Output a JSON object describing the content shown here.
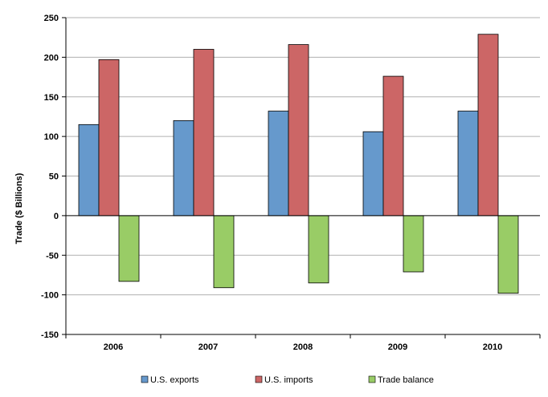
{
  "chart_data": {
    "type": "bar",
    "title": "",
    "xlabel": "",
    "ylabel": "Trade ($ Billions)",
    "categories": [
      "2006",
      "2007",
      "2008",
      "2009",
      "2010"
    ],
    "ylim": [
      -150,
      250
    ],
    "yticks": [
      250,
      200,
      150,
      100,
      50,
      0,
      -50,
      -100,
      -150
    ],
    "grid": true,
    "legend_position": "bottom",
    "series": [
      {
        "name": "U.S. exports",
        "color": "#6699cc",
        "values": [
          115,
          120,
          132,
          106,
          132
        ]
      },
      {
        "name": "U.S. imports",
        "color": "#cc6666",
        "values": [
          197,
          210,
          216,
          176,
          229
        ]
      },
      {
        "name": "Trade balance",
        "color": "#99cc66",
        "values": [
          -83,
          -91,
          -85,
          -71,
          -98
        ]
      }
    ]
  }
}
